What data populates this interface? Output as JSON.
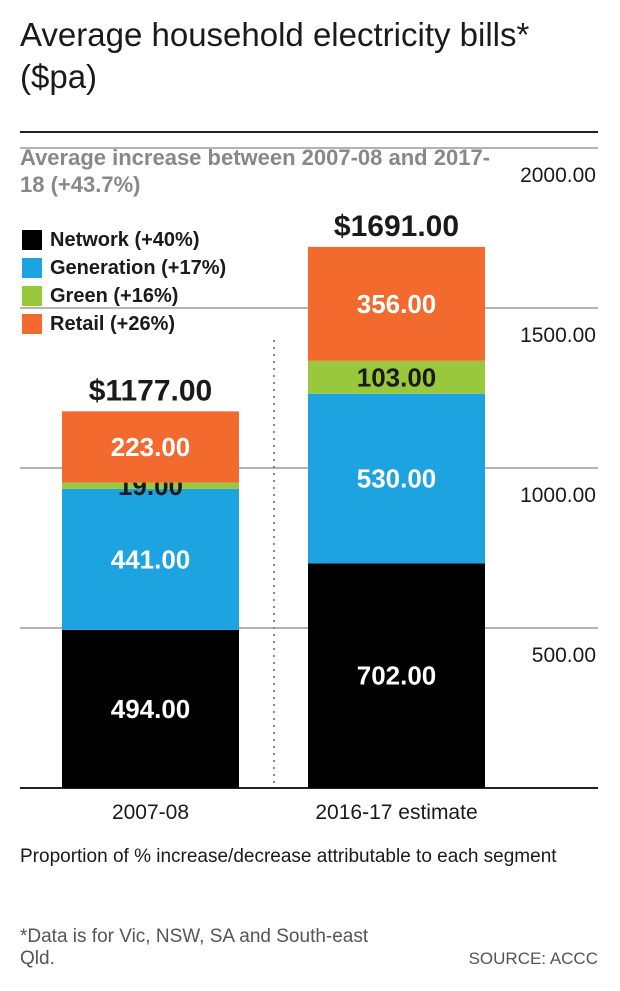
{
  "title": "Average household electricity bills* ($pa)",
  "subtitle": "Average increase between 2007-08 and 2017-18 (+43.7%)",
  "caption": "Proportion of % increase/decrease attributable to each segment",
  "footnote": "*Data is for Vic, NSW, SA and South-east Qld.",
  "source": "SOURCE: ACCC",
  "legend": [
    {
      "label": "Network (+40%)",
      "color": "#000000"
    },
    {
      "label": "Generation (+17%)",
      "color": "#1ca3e0"
    },
    {
      "label": "Green (+16%)",
      "color": "#9ac83c"
    },
    {
      "label": "Retail (+26%)",
      "color": "#f26a2e"
    }
  ],
  "chart_data": {
    "type": "bar",
    "stacked": true,
    "title": "Average household electricity bills* ($pa)",
    "subtitle": "Average increase between 2007-08 and 2017-18 (+43.7%)",
    "categories": [
      "2007-08",
      "2016-17 estimate"
    ],
    "series": [
      {
        "name": "Network (+40%)",
        "color": "#000000",
        "values": [
          494,
          702
        ],
        "labels": [
          "494.00",
          "702.00"
        ],
        "label_color": "#ffffff"
      },
      {
        "name": "Generation (+17%)",
        "color": "#1ca3e0",
        "values": [
          441,
          530
        ],
        "labels": [
          "441.00",
          "530.00"
        ],
        "label_color": "#ffffff"
      },
      {
        "name": "Green (+16%)",
        "color": "#9ac83c",
        "values": [
          19,
          103
        ],
        "labels": [
          "19.00",
          "103.00"
        ],
        "label_color": "#1a1a1a"
      },
      {
        "name": "Retail (+26%)",
        "color": "#f26a2e",
        "values": [
          223,
          356
        ],
        "labels": [
          "223.00",
          "356.00"
        ],
        "label_color": "#ffffff"
      }
    ],
    "totals": [
      1177,
      1691
    ],
    "total_labels": [
      "$1177.00",
      "$1691.00"
    ],
    "yticks": [
      500,
      1000,
      1500,
      2000
    ],
    "ytick_labels": [
      "500.00",
      "1000.00",
      "1500.00",
      "2000.00"
    ],
    "ylim": [
      0,
      2050
    ],
    "grid": true,
    "xlabel": "",
    "ylabel": ""
  }
}
